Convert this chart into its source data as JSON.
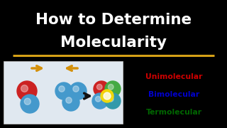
{
  "background_color": "#000000",
  "title_line1": "How to Determine",
  "title_line2": "Molecularity",
  "title_color": "#ffffff",
  "title_fontsize": 15.5,
  "underline_color": "#d4a017",
  "labels": [
    "Unimolecular",
    "Bimolecular",
    "Termolecular"
  ],
  "label_colors": [
    "#cc0000",
    "#0000cc",
    "#006600"
  ],
  "label_fontsize": 7.8,
  "box_facecolor": "#e0e8f0",
  "arrow_color": "#d4900a",
  "big_arrow_color": "#111111"
}
